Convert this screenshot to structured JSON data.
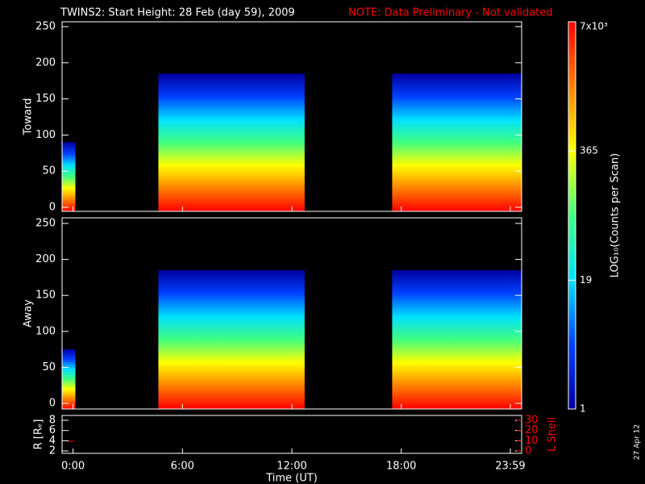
{
  "chart_data": [
    {
      "type": "spectrogram",
      "title": "TWINS2: Start Height: 28 Feb (day  59), 2009",
      "note": "NOTE: Data Preliminary - Not validated",
      "ylabel": "Toward",
      "xlim": [
        -0.6,
        24.6
      ],
      "ylim": [
        -5.6,
        256.7
      ],
      "yticks": [
        0,
        50,
        100,
        150,
        200,
        250
      ],
      "segments": [
        {
          "x": [
            -0.6,
            0.13
          ],
          "top": 90
        },
        {
          "x": [
            4.68,
            12.7
          ],
          "top": 185
        },
        {
          "x": [
            17.5,
            24.6
          ],
          "top": 185
        }
      ]
    },
    {
      "type": "spectrogram",
      "ylabel": "Away",
      "xlim": [
        -0.6,
        24.6
      ],
      "ylim": [
        -7.8,
        257.8
      ],
      "yticks": [
        0,
        50,
        100,
        150,
        200,
        250
      ],
      "segments": [
        {
          "x": [
            -0.6,
            0.13
          ],
          "top": 75
        },
        {
          "x": [
            4.68,
            12.7
          ],
          "top": 185
        },
        {
          "x": [
            17.5,
            24.6
          ],
          "top": 185
        }
      ]
    },
    {
      "type": "line",
      "ylabel": "R [Rₑ]",
      "y2label": "L Shell",
      "y2color": "#ff0000",
      "xlabel": "Time (UT)",
      "xlim": [
        -0.6,
        24.6
      ],
      "ylim": [
        1.53,
        8.95
      ],
      "yticks": [
        2,
        4,
        6,
        8
      ],
      "y2lim": [
        -2.4,
        34.7
      ],
      "y2ticks": [
        0,
        10,
        20,
        30
      ],
      "xticks": [
        {
          "value": 0,
          "label": "0:00"
        },
        {
          "value": 6,
          "label": "6:00"
        },
        {
          "value": 12,
          "label": "12:00"
        },
        {
          "value": 18,
          "label": "18:00"
        },
        {
          "value": 23.98,
          "label": "23:59"
        }
      ]
    }
  ],
  "colorbar": {
    "label": "LOG₁₀(Counts per Scan)",
    "scale": "log",
    "lim": [
      1,
      7000
    ],
    "ticks": [
      {
        "value": 7000,
        "label": "7x10³"
      },
      365,
      19,
      1
    ],
    "colors": [
      "#0000a0",
      "#0040ff",
      "#00e0ff",
      "#40ff80",
      "#ffff00",
      "#ff8000",
      "#ff0000"
    ]
  },
  "footer": "27 Apr 12"
}
